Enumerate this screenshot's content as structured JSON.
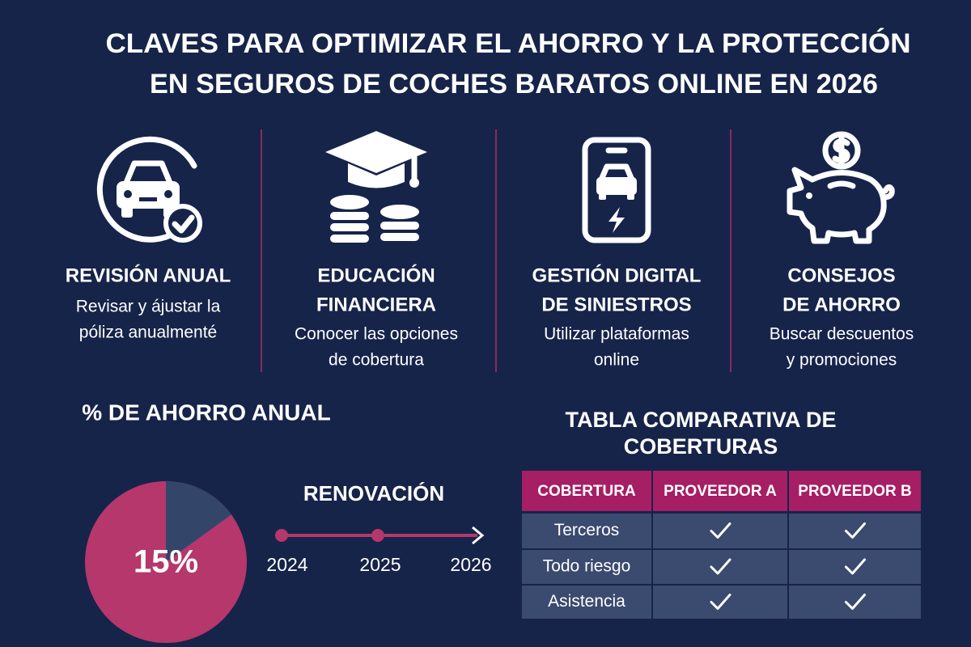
{
  "header": {
    "title_lines": [
      "CLAVES PARA OPTIMIZAR EL AHORRO Y LA PROTECCIÓN",
      "EN SEGUROS DE COCHES BARATOS ONLINE EN 2026"
    ]
  },
  "features": [
    {
      "title_lines": [
        "REVISIÓN ANUAL"
      ],
      "description_lines": [
        "Revisar y ájustar la",
        "póliza anualmenté"
      ]
    },
    {
      "title_lines": [
        "EDUCACIÓN",
        "FINANCIERA"
      ],
      "description_lines": [
        "Conocer las opciones",
        "de cobertura"
      ]
    },
    {
      "title_lines": [
        "GESTIÓN DIGITAL",
        "DE SINIESTROS"
      ],
      "description_lines": [
        "Utilizar plataformas",
        "online"
      ]
    },
    {
      "title_lines": [
        "CONSEJOS",
        "DE AHORRO"
      ],
      "description_lines": [
        "Buscar descuentos",
        "y promociones"
      ]
    }
  ],
  "savings": {
    "title": "% DE AHORRO ANUAL",
    "values": [
      15
    ],
    "value_labels": [
      "15%"
    ]
  },
  "renewal": {
    "title": "RENOVACIÓN",
    "years": [
      "2024",
      "2025",
      "2026"
    ]
  },
  "table": {
    "title_lines": [
      "TABLA COMPARATIVA DE",
      "COBERTURAS"
    ],
    "headers": [
      "COBERTURA",
      "PROVEEDOR A",
      "PROVEEDOR B"
    ],
    "rows": [
      [
        "Terceros"
      ],
      [
        "Todo riesgo"
      ],
      [
        "Asistencia"
      ]
    ]
  }
}
